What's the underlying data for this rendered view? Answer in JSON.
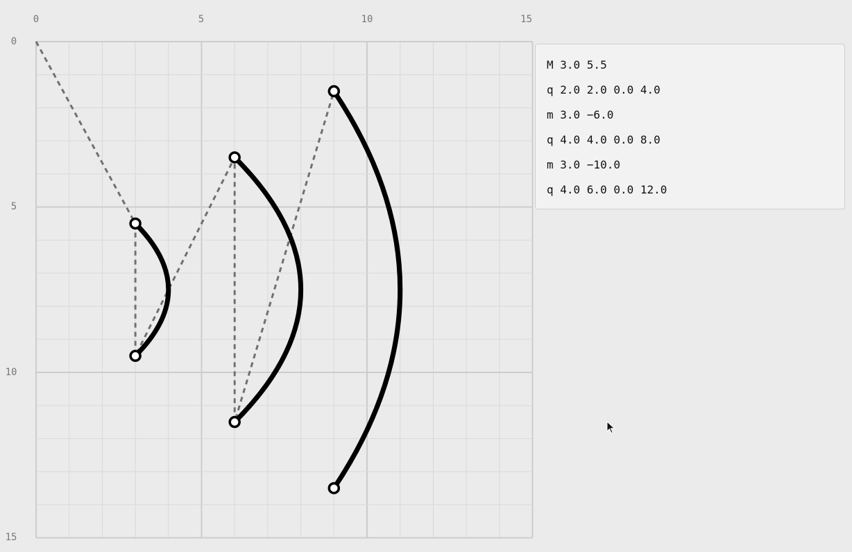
{
  "grid": {
    "x_ticks": [
      "0",
      "5",
      "10",
      "15"
    ],
    "y_ticks": [
      "0",
      "5",
      "10",
      "15"
    ],
    "x_range": [
      0,
      15
    ],
    "y_range": [
      0,
      15
    ],
    "minor_step": 1,
    "major_step": 5
  },
  "colors": {
    "background": "#ebebeb",
    "grid_minor": "#d9d9d9",
    "grid_major": "#cccccc",
    "curve": "#000000",
    "guide": "#707070",
    "panel_bg": "#f2f2f2"
  },
  "commands": [
    {
      "text": "M 3.0 5.5"
    },
    {
      "text": "q 2.0 2.0 0.0 4.0"
    },
    {
      "text": "m 3.0 −6.0"
    },
    {
      "text": "q 4.0 4.0 0.0 8.0"
    },
    {
      "text": "m 3.0 −10.0"
    },
    {
      "text": "q 4.0 6.0 0.0 12.0"
    }
  ],
  "curves": [
    {
      "start": [
        3.0,
        5.5
      ],
      "control": [
        5.0,
        7.5
      ],
      "end": [
        3.0,
        9.5
      ]
    },
    {
      "start": [
        6.0,
        3.5
      ],
      "control": [
        10.0,
        7.5
      ],
      "end": [
        6.0,
        11.5
      ]
    },
    {
      "start": [
        9.0,
        1.5
      ],
      "control": [
        13.0,
        7.5
      ],
      "end": [
        9.0,
        13.5
      ]
    }
  ],
  "guide_path": [
    [
      0,
      0
    ],
    [
      3.0,
      5.5
    ],
    [
      3.0,
      9.5
    ],
    [
      6.0,
      3.5
    ],
    [
      6.0,
      11.5
    ],
    [
      9.0,
      1.5
    ]
  ],
  "cursor_icon": "arrow-cursor-icon"
}
